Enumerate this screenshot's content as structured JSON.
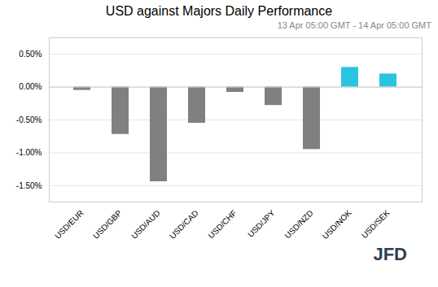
{
  "chart_data": {
    "type": "bar",
    "title": "USD against Majors Daily Performance",
    "subtitle": "13 Apr 05:00 GMT - 14 Apr  05:00 GMT",
    "annotations": [
      "JFD"
    ],
    "categories": [
      "USD/EUR",
      "USD/GBP",
      "USD/AUD",
      "USD/CAD",
      "USD/CHF",
      "USD/JPY",
      "USD/NZD",
      "USD/NOK",
      "USD/SEK"
    ],
    "values": [
      -0.05,
      -0.72,
      -1.44,
      -0.55,
      -0.08,
      -0.28,
      -0.95,
      0.3,
      0.2
    ],
    "colors": [
      "#808080",
      "#808080",
      "#808080",
      "#808080",
      "#808080",
      "#808080",
      "#808080",
      "#29c4e0",
      "#29c4e0"
    ],
    "ylim": [
      -1.75,
      0.75
    ],
    "yticks": [
      {
        "value": -1.5,
        "label": "-1.50%"
      },
      {
        "value": -1.0,
        "label": "-1.00%"
      },
      {
        "value": -0.5,
        "label": "-0.50%"
      },
      {
        "value": 0.0,
        "label": "0.00%"
      },
      {
        "value": 0.5,
        "label": "0.50%"
      }
    ],
    "grid": true
  }
}
